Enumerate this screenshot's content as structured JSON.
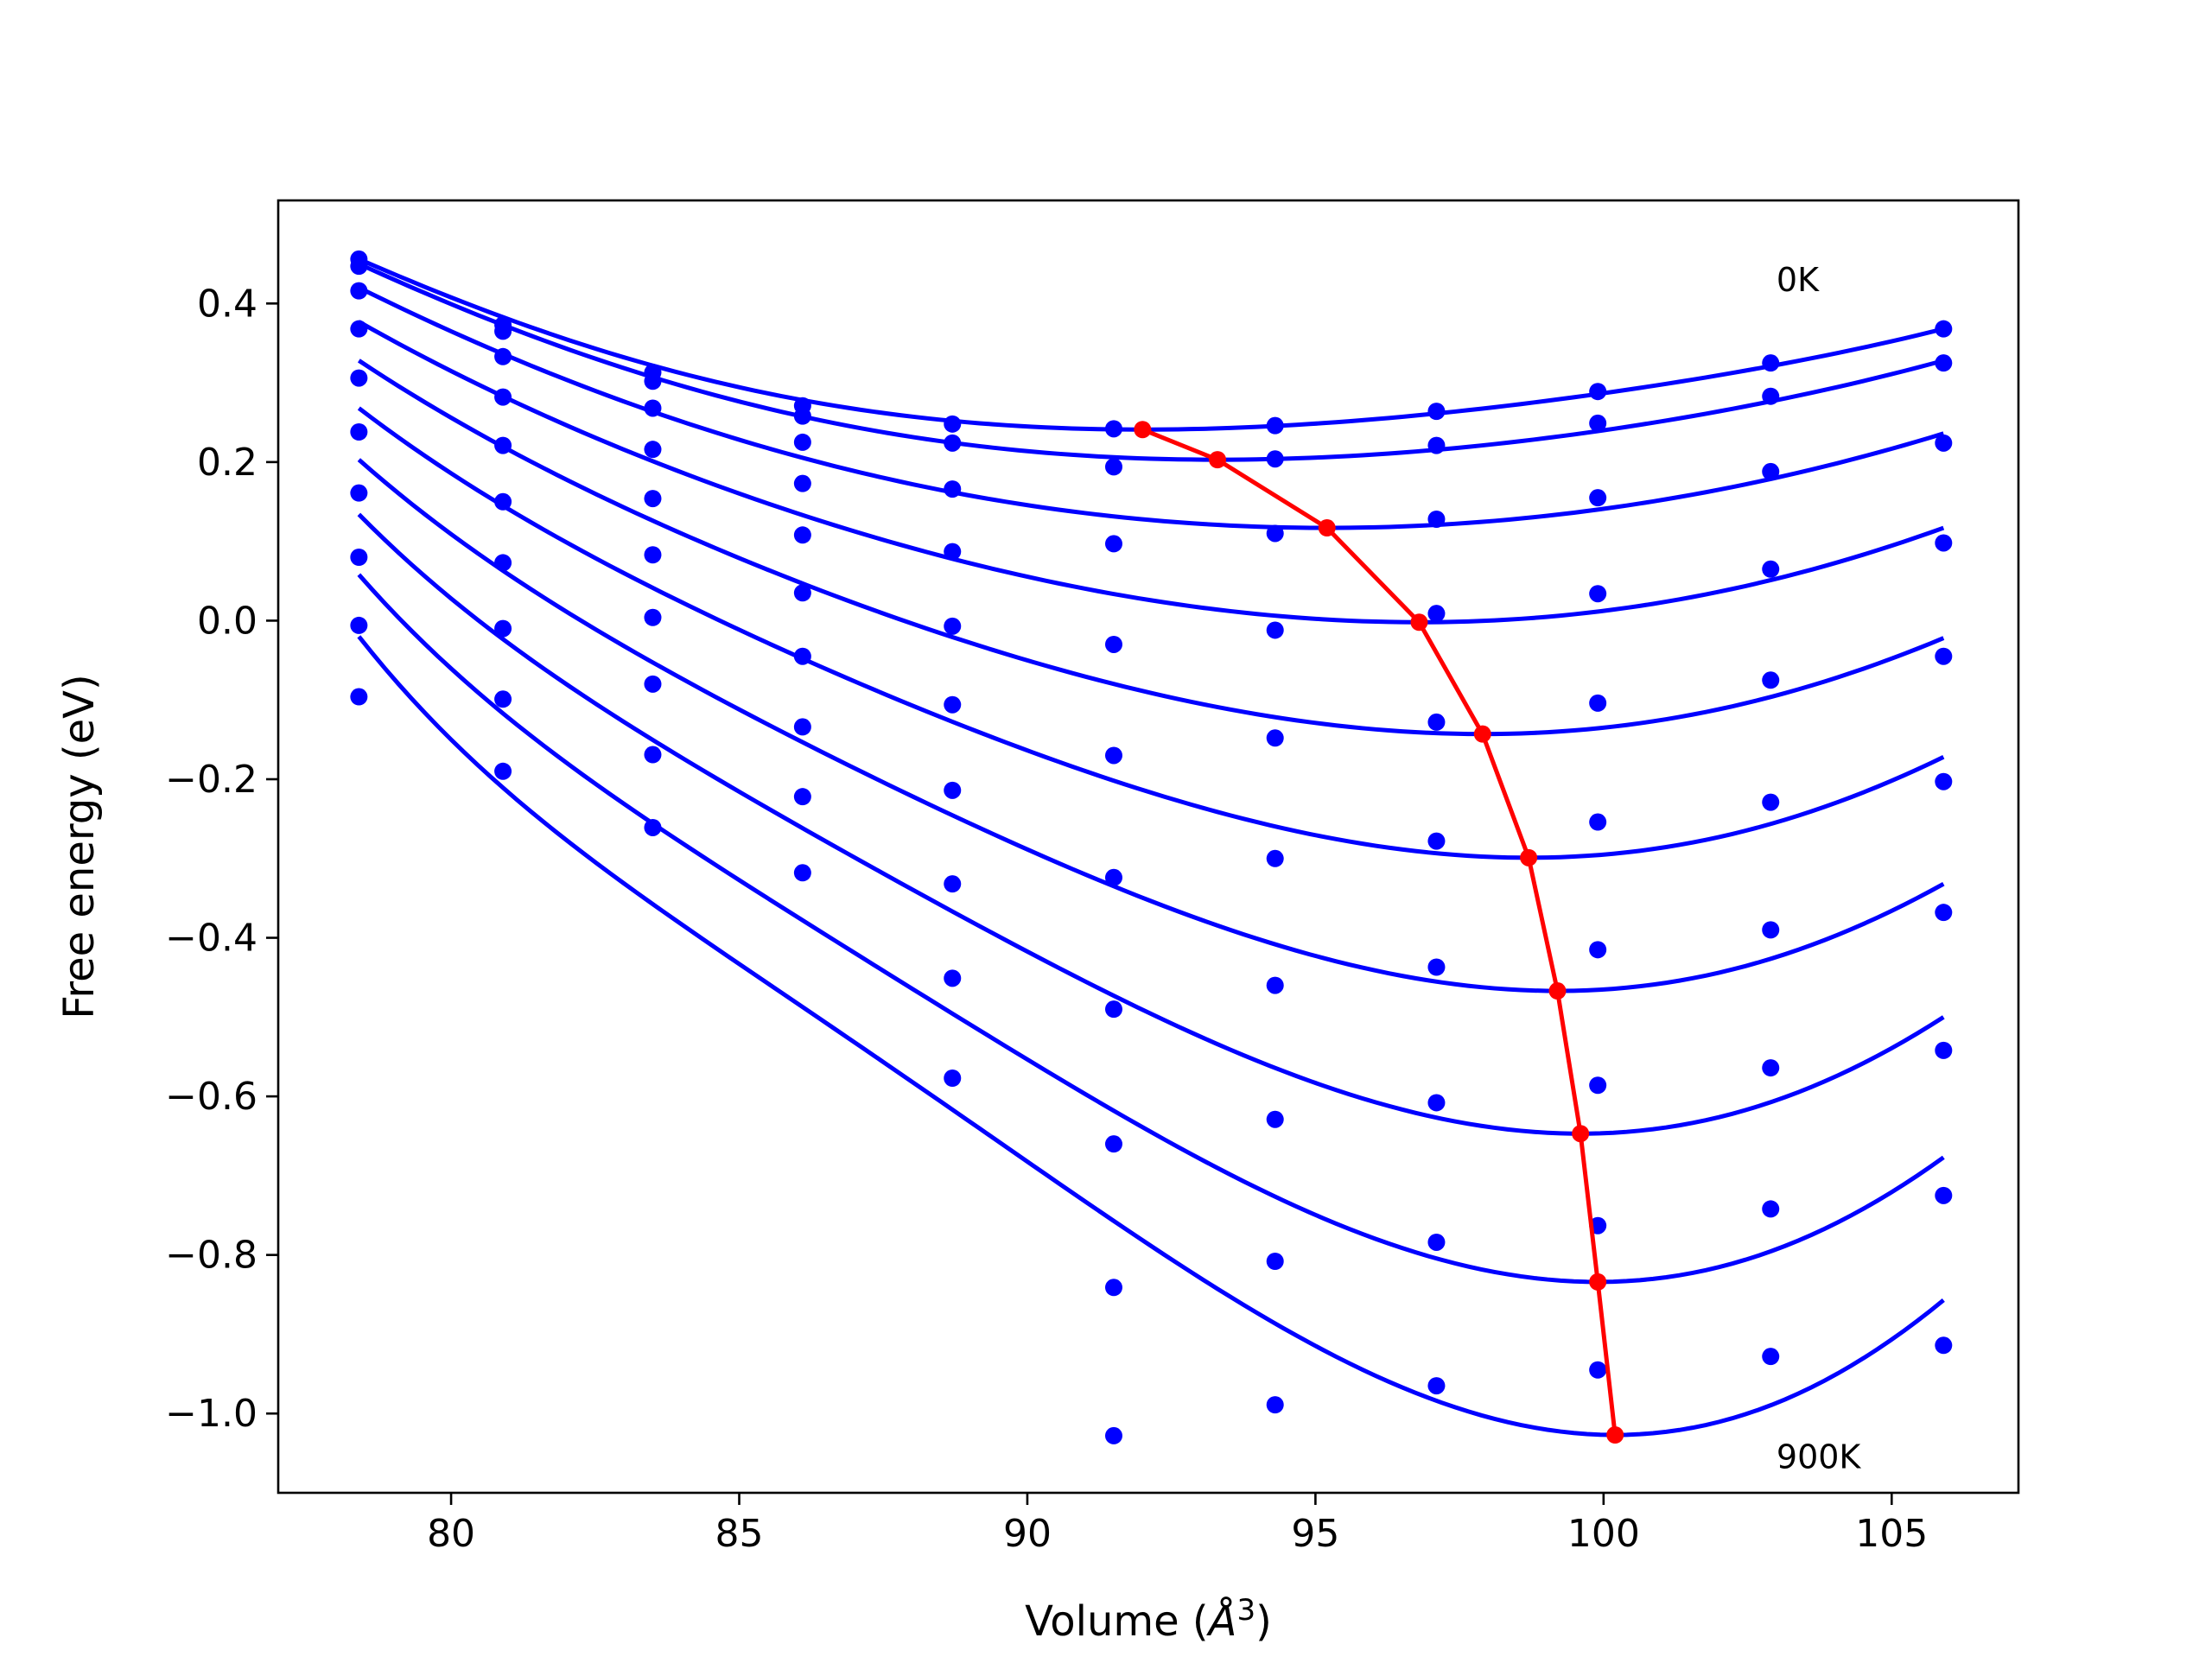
{
  "chart_data": {
    "type": "scatter",
    "xlabel": "Volume",
    "xlabel_unit_base": "Å",
    "xlabel_unit_exp": "3",
    "ylabel": "Free energy (eV)",
    "xlim": [
      77.0,
      107.2
    ],
    "ylim": [
      -1.1,
      0.53
    ],
    "xticks": [
      80,
      85,
      90,
      95,
      100,
      105
    ],
    "yticks": [
      0.4,
      0.2,
      0.0,
      -0.2,
      -0.4,
      -0.6,
      -0.8,
      -1.0
    ],
    "ytick_labels": [
      "0.4",
      "0.2",
      "0.0",
      "−0.2",
      "−0.4",
      "−0.6",
      "−0.8",
      "−1.0"
    ],
    "grid": false,
    "annotations": [
      {
        "text": "0K",
        "x": 103.0,
        "y": 0.43
      },
      {
        "text": "900K",
        "x": 103.0,
        "y": -1.055
      }
    ],
    "colors": {
      "points": "#0000ff",
      "fits": "#0000ff",
      "minima": "#ff0000"
    },
    "points_x": [
      78.4,
      80.9,
      83.5,
      86.1,
      88.7,
      91.5,
      94.3,
      97.1,
      99.9,
      102.9,
      105.9
    ],
    "series": [
      {
        "points_y": [
          0.456,
          0.373,
          0.313,
          0.271,
          0.248,
          0.242,
          0.246,
          0.264,
          0.289,
          0.325,
          0.368
        ],
        "fit": {
          "vmin": 92.0,
          "fmin": 0.241,
          "left": 0.456,
          "right": 0.368
        }
      },
      {
        "points_y": [
          0.447,
          0.365,
          0.302,
          0.258,
          0.224,
          0.194,
          0.204,
          0.221,
          0.249,
          0.283,
          0.325
        ],
        "fit": {
          "vmin": 93.3,
          "fmin": 0.203,
          "left": 0.45,
          "right": 0.328
        }
      },
      {
        "points_y": [
          0.416,
          0.333,
          0.268,
          0.225,
          0.166,
          0.097,
          0.11,
          0.128,
          0.155,
          0.188,
          0.224
        ],
        "fit": {
          "vmin": 95.2,
          "fmin": 0.117,
          "left": 0.42,
          "right": 0.236
        }
      },
      {
        "points_y": [
          0.368,
          0.282,
          0.216,
          0.173,
          0.087,
          -0.03,
          -0.012,
          0.009,
          0.034,
          0.065,
          0.098
        ],
        "fit": {
          "vmin": 96.8,
          "fmin": -0.002,
          "left": 0.377,
          "right": 0.117
        }
      },
      {
        "points_y": [
          0.306,
          0.221,
          0.154,
          0.108,
          -0.007,
          -0.17,
          -0.148,
          -0.128,
          -0.104,
          -0.075,
          -0.045
        ],
        "fit": {
          "vmin": 97.9,
          "fmin": -0.143,
          "left": 0.328,
          "right": -0.022
        }
      },
      {
        "points_y": [
          0.238,
          0.15,
          0.083,
          0.035,
          -0.106,
          -0.324,
          -0.3,
          -0.278,
          -0.254,
          -0.229,
          -0.203
        ],
        "fit": {
          "vmin": 98.7,
          "fmin": -0.299,
          "left": 0.268,
          "right": -0.172
        }
      },
      {
        "points_y": [
          0.161,
          0.073,
          0.004,
          -0.045,
          -0.214,
          -0.49,
          -0.46,
          -0.437,
          -0.415,
          -0.39,
          -0.368
        ],
        "fit": {
          "vmin": 99.2,
          "fmin": -0.467,
          "left": 0.203,
          "right": -0.332
        }
      },
      {
        "points_y": [
          0.08,
          -0.01,
          -0.08,
          -0.134,
          -0.332,
          -0.66,
          -0.629,
          -0.608,
          -0.586,
          -0.564,
          -0.542
        ],
        "fit": {
          "vmin": 99.6,
          "fmin": -0.647,
          "left": 0.134,
          "right": -0.5
        }
      },
      {
        "points_y": [
          -0.006,
          -0.099,
          -0.169,
          -0.222,
          -0.451,
          -0.841,
          -0.808,
          -0.784,
          -0.763,
          -0.742,
          -0.725
        ],
        "fit": {
          "vmin": 99.9,
          "fmin": -0.834,
          "left": 0.058,
          "right": -0.677
        }
      },
      {
        "points_y": [
          -0.096,
          -0.19,
          -0.261,
          -0.318,
          -0.577,
          -1.028,
          -0.989,
          -0.965,
          -0.945,
          -0.928,
          -0.914
        ],
        "fit": {
          "vmin": 100.2,
          "fmin": -1.027,
          "left": -0.02,
          "right": -0.857
        }
      }
    ]
  }
}
